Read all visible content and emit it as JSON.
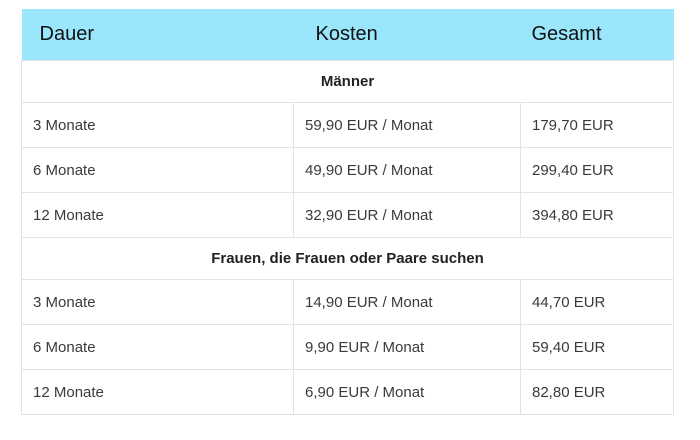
{
  "header": {
    "duration": "Dauer",
    "cost": "Kosten",
    "total": "Gesamt"
  },
  "groups": [
    {
      "title": "Männer",
      "rows": [
        {
          "duration": "3 Monate",
          "cost": "59,90 EUR / Monat",
          "total": "179,70 EUR"
        },
        {
          "duration": "6 Monate",
          "cost": "49,90 EUR / Monat",
          "total": "299,40 EUR"
        },
        {
          "duration": "12 Monate",
          "cost": "32,90 EUR / Monat",
          "total": "394,80 EUR"
        }
      ]
    },
    {
      "title": "Frauen, die Frauen oder Paare suchen",
      "rows": [
        {
          "duration": "3 Monate",
          "cost": "14,90 EUR / Monat",
          "total": "44,70 EUR"
        },
        {
          "duration": "6 Monate",
          "cost": "9,90 EUR / Monat",
          "total": "59,40 EUR"
        },
        {
          "duration": "12 Monate",
          "cost": "6,90 EUR / Monat",
          "total": "82,80 EUR"
        }
      ]
    }
  ]
}
